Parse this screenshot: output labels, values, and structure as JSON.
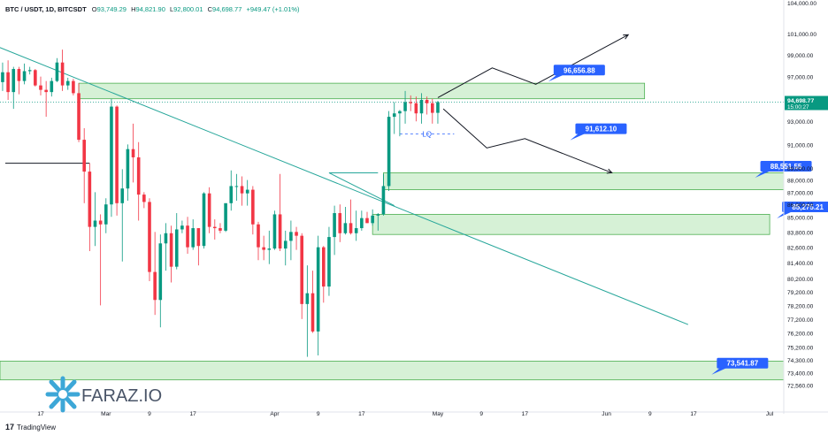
{
  "header": {
    "symbol": "BTC / USDT, 1D, BITCSDT",
    "o_label": "O",
    "o": "93,749.29",
    "h_label": "H",
    "h": "94,821.90",
    "l_label": "L",
    "l": "92,800.01",
    "c_label": "C",
    "c": "94,698.77",
    "change": "+949.47 (+1.01%)"
  },
  "watermark": {
    "text": "FARAZ.IO"
  },
  "footer": {
    "brand": "TradingView",
    "icon": "tradingview-logo-icon"
  },
  "colors": {
    "up": "#089981",
    "down": "#f23645",
    "zone": "#c8ecc8",
    "zone_border": "#4caf50",
    "trendline": "#26a69a",
    "label_bg": "#2962ff"
  },
  "chart_data": {
    "type": "candlestick",
    "title": "BTC / USDT, 1D, BITCSDT",
    "y_axis": {
      "scale": "log",
      "ylim": [
        71200,
        104000
      ],
      "ticks": [
        "104,000.00",
        "101,000.00",
        "99,000.00",
        "97,000.00",
        "95,000.00",
        "93,000.00",
        "91,000.00",
        "89,000.00",
        "88,000.00",
        "87,000.00",
        "86,000.00",
        "85,000.00",
        "83,800.00",
        "82,600.00",
        "81,400.00",
        "80,200.00",
        "79,200.00",
        "78,200.00",
        "77,200.00",
        "76,200.00",
        "75,200.00",
        "74,300.00",
        "73,400.00",
        "72,560.00"
      ]
    },
    "x_axis": {
      "labels": [
        "17",
        "Mar",
        "9",
        "17",
        "Apr",
        "9",
        "17",
        "May",
        "9",
        "17",
        "Jun",
        "9",
        "17",
        "Jul"
      ],
      "dates": [
        "2025-02-17",
        "2025-03-01",
        "2025-03-09",
        "2025-03-17",
        "2025-04-01",
        "2025-04-09",
        "2025-04-17",
        "2025-05-01",
        "2025-05-09",
        "2025-05-17",
        "2025-06-01",
        "2025-06-09",
        "2025-06-17",
        "2025-07-01"
      ]
    },
    "last_price": {
      "value": "94,698.77",
      "countdown": "15:00:27"
    },
    "candles": [
      {
        "d": "2025-02-08",
        "o": 96400,
        "h": 97800,
        "l": 94900,
        "c": 95800
      },
      {
        "d": "2025-02-09",
        "o": 95800,
        "h": 97300,
        "l": 94800,
        "c": 96500
      },
      {
        "d": "2025-02-10",
        "o": 96500,
        "h": 98300,
        "l": 95700,
        "c": 97400
      },
      {
        "d": "2025-02-11",
        "o": 97400,
        "h": 98500,
        "l": 94900,
        "c": 95600
      },
      {
        "d": "2025-02-12",
        "o": 95600,
        "h": 97900,
        "l": 94100,
        "c": 97700
      },
      {
        "d": "2025-02-13",
        "o": 97700,
        "h": 97900,
        "l": 95400,
        "c": 96600
      },
      {
        "d": "2025-02-14",
        "o": 96600,
        "h": 98200,
        "l": 96300,
        "c": 97500
      },
      {
        "d": "2025-02-15",
        "o": 97500,
        "h": 97900,
        "l": 97200,
        "c": 97600
      },
      {
        "d": "2025-02-16",
        "o": 97600,
        "h": 97700,
        "l": 96100,
        "c": 96200
      },
      {
        "d": "2025-02-17",
        "o": 96200,
        "h": 97000,
        "l": 95300,
        "c": 95800
      },
      {
        "d": "2025-02-18",
        "o": 95800,
        "h": 96600,
        "l": 93400,
        "c": 95600
      },
      {
        "d": "2025-02-19",
        "o": 95600,
        "h": 96900,
        "l": 95200,
        "c": 96600
      },
      {
        "d": "2025-02-20",
        "o": 96600,
        "h": 98700,
        "l": 96500,
        "c": 98300
      },
      {
        "d": "2025-02-21",
        "o": 98300,
        "h": 99500,
        "l": 95700,
        "c": 96200
      },
      {
        "d": "2025-02-22",
        "o": 96200,
        "h": 96900,
        "l": 95800,
        "c": 96600
      },
      {
        "d": "2025-02-23",
        "o": 96600,
        "h": 96800,
        "l": 95300,
        "c": 95500
      },
      {
        "d": "2025-02-24",
        "o": 95500,
        "h": 96400,
        "l": 91200,
        "c": 91400
      },
      {
        "d": "2025-02-25",
        "o": 91400,
        "h": 92400,
        "l": 86100,
        "c": 88700
      },
      {
        "d": "2025-02-26",
        "o": 88700,
        "h": 89400,
        "l": 82300,
        "c": 84200
      },
      {
        "d": "2025-02-27",
        "o": 84200,
        "h": 87000,
        "l": 82700,
        "c": 84700
      },
      {
        "d": "2025-02-28",
        "o": 84700,
        "h": 85200,
        "l": 78200,
        "c": 84400
      },
      {
        "d": "2025-03-01",
        "o": 84400,
        "h": 86500,
        "l": 83700,
        "c": 86000
      },
      {
        "d": "2025-03-02",
        "o": 86000,
        "h": 95000,
        "l": 85000,
        "c": 94300
      },
      {
        "d": "2025-03-03",
        "o": 94300,
        "h": 94400,
        "l": 85100,
        "c": 86100
      },
      {
        "d": "2025-03-04",
        "o": 86100,
        "h": 88900,
        "l": 81500,
        "c": 87300
      },
      {
        "d": "2025-03-05",
        "o": 87300,
        "h": 91000,
        "l": 86300,
        "c": 90600
      },
      {
        "d": "2025-03-06",
        "o": 90600,
        "h": 92800,
        "l": 87800,
        "c": 89900
      },
      {
        "d": "2025-03-07",
        "o": 89900,
        "h": 91200,
        "l": 84700,
        "c": 86800
      },
      {
        "d": "2025-03-08",
        "o": 86800,
        "h": 87000,
        "l": 85700,
        "c": 86200
      },
      {
        "d": "2025-03-09",
        "o": 86200,
        "h": 86500,
        "l": 80000,
        "c": 80700
      },
      {
        "d": "2025-03-10",
        "o": 80700,
        "h": 83800,
        "l": 77500,
        "c": 78600
      },
      {
        "d": "2025-03-11",
        "o": 78600,
        "h": 83600,
        "l": 76600,
        "c": 82900
      },
      {
        "d": "2025-03-12",
        "o": 82900,
        "h": 84500,
        "l": 80800,
        "c": 83700
      },
      {
        "d": "2025-03-13",
        "o": 83700,
        "h": 84300,
        "l": 79900,
        "c": 81100
      },
      {
        "d": "2025-03-14",
        "o": 81100,
        "h": 85300,
        "l": 80900,
        "c": 84000
      },
      {
        "d": "2025-03-15",
        "o": 84000,
        "h": 84700,
        "l": 83700,
        "c": 84300
      },
      {
        "d": "2025-03-16",
        "o": 84300,
        "h": 85000,
        "l": 82100,
        "c": 82600
      },
      {
        "d": "2025-03-17",
        "o": 82600,
        "h": 84800,
        "l": 82400,
        "c": 84100
      },
      {
        "d": "2025-03-18",
        "o": 84100,
        "h": 84100,
        "l": 81200,
        "c": 82700
      },
      {
        "d": "2025-03-19",
        "o": 82700,
        "h": 87000,
        "l": 82500,
        "c": 86900
      },
      {
        "d": "2025-03-20",
        "o": 86900,
        "h": 87400,
        "l": 83700,
        "c": 84200
      },
      {
        "d": "2025-03-21",
        "o": 84200,
        "h": 84800,
        "l": 83200,
        "c": 84100
      },
      {
        "d": "2025-03-22",
        "o": 84100,
        "h": 84500,
        "l": 83700,
        "c": 83900
      },
      {
        "d": "2025-03-23",
        "o": 83900,
        "h": 86100,
        "l": 83800,
        "c": 86100
      },
      {
        "d": "2025-03-24",
        "o": 86100,
        "h": 88800,
        "l": 85500,
        "c": 87500
      },
      {
        "d": "2025-03-25",
        "o": 87500,
        "h": 88500,
        "l": 86300,
        "c": 87500
      },
      {
        "d": "2025-03-26",
        "o": 87500,
        "h": 88300,
        "l": 85900,
        "c": 86900
      },
      {
        "d": "2025-03-27",
        "o": 86900,
        "h": 88000,
        "l": 85900,
        "c": 87200
      },
      {
        "d": "2025-03-28",
        "o": 87200,
        "h": 87500,
        "l": 83600,
        "c": 84400
      },
      {
        "d": "2025-03-29",
        "o": 84400,
        "h": 84600,
        "l": 81600,
        "c": 82600
      },
      {
        "d": "2025-03-30",
        "o": 82600,
        "h": 83500,
        "l": 81600,
        "c": 82400
      },
      {
        "d": "2025-03-31",
        "o": 82400,
        "h": 83900,
        "l": 81300,
        "c": 82500
      },
      {
        "d": "2025-04-01",
        "o": 82500,
        "h": 85500,
        "l": 82400,
        "c": 85200
      },
      {
        "d": "2025-04-02",
        "o": 85200,
        "h": 88500,
        "l": 82300,
        "c": 82500
      },
      {
        "d": "2025-04-03",
        "o": 82500,
        "h": 83900,
        "l": 81200,
        "c": 83100
      },
      {
        "d": "2025-04-04",
        "o": 83100,
        "h": 84700,
        "l": 81600,
        "c": 83800
      },
      {
        "d": "2025-04-05",
        "o": 83800,
        "h": 84200,
        "l": 82400,
        "c": 83500
      },
      {
        "d": "2025-04-06",
        "o": 83500,
        "h": 83700,
        "l": 77200,
        "c": 78300
      },
      {
        "d": "2025-04-07",
        "o": 78300,
        "h": 81200,
        "l": 74500,
        "c": 79100
      },
      {
        "d": "2025-04-08",
        "o": 79100,
        "h": 80800,
        "l": 76200,
        "c": 76300
      },
      {
        "d": "2025-04-09",
        "o": 76300,
        "h": 83500,
        "l": 74600,
        "c": 82600
      },
      {
        "d": "2025-04-10",
        "o": 82600,
        "h": 82700,
        "l": 78400,
        "c": 79600
      },
      {
        "d": "2025-04-11",
        "o": 79600,
        "h": 84200,
        "l": 78900,
        "c": 83400
      },
      {
        "d": "2025-04-12",
        "o": 83400,
        "h": 85900,
        "l": 82000,
        "c": 85300
      },
      {
        "d": "2025-04-13",
        "o": 85300,
        "h": 86000,
        "l": 83000,
        "c": 83700
      },
      {
        "d": "2025-04-14",
        "o": 83700,
        "h": 85800,
        "l": 83600,
        "c": 84500
      },
      {
        "d": "2025-04-15",
        "o": 84500,
        "h": 86400,
        "l": 83600,
        "c": 83700
      },
      {
        "d": "2025-04-16",
        "o": 83700,
        "h": 85500,
        "l": 83100,
        "c": 84100
      },
      {
        "d": "2025-04-17",
        "o": 84100,
        "h": 85500,
        "l": 83900,
        "c": 84900
      },
      {
        "d": "2025-04-18",
        "o": 84900,
        "h": 85400,
        "l": 84500,
        "c": 84500
      },
      {
        "d": "2025-04-19",
        "o": 84500,
        "h": 85600,
        "l": 84300,
        "c": 85100
      },
      {
        "d": "2025-04-20",
        "o": 85100,
        "h": 85300,
        "l": 83900,
        "c": 85200
      },
      {
        "d": "2025-04-21",
        "o": 85200,
        "h": 88500,
        "l": 85100,
        "c": 87500
      },
      {
        "d": "2025-04-22",
        "o": 87500,
        "h": 93900,
        "l": 87100,
        "c": 93400
      },
      {
        "d": "2025-04-23",
        "o": 93400,
        "h": 94700,
        "l": 91900,
        "c": 93700
      },
      {
        "d": "2025-04-24",
        "o": 93700,
        "h": 94000,
        "l": 91700,
        "c": 93900
      },
      {
        "d": "2025-04-25",
        "o": 93900,
        "h": 95700,
        "l": 92800,
        "c": 94700
      },
      {
        "d": "2025-04-26",
        "o": 94700,
        "h": 95300,
        "l": 93900,
        "c": 94600
      },
      {
        "d": "2025-04-27",
        "o": 94600,
        "h": 95200,
        "l": 93000,
        "c": 93700
      },
      {
        "d": "2025-04-28",
        "o": 93700,
        "h": 95500,
        "l": 92800,
        "c": 94900
      },
      {
        "d": "2025-04-29",
        "o": 94900,
        "h": 95200,
        "l": 93600,
        "c": 94600
      },
      {
        "d": "2025-04-30",
        "o": 94600,
        "h": 95000,
        "l": 92800,
        "c": 93750
      },
      {
        "d": "2025-05-01",
        "o": 93749.29,
        "h": 94821.9,
        "l": 92800.01,
        "c": 94698.77
      }
    ],
    "zones": [
      {
        "from": "2025-02-24",
        "to": "2025-06-08",
        "low": 95000,
        "high": 96400
      },
      {
        "from": "2025-04-21",
        "to": "2025-07-05",
        "low": 87200,
        "high": 88600
      },
      {
        "from": "2025-04-19",
        "to": "2025-07-01",
        "low": 83600,
        "high": 85200
      },
      {
        "from": "2025-01-20",
        "to": "2025-09-05",
        "low": 72900,
        "high": 74200
      }
    ],
    "trendline": [
      {
        "d": "2025-01-20",
        "p": 104000
      },
      {
        "d": "2025-06-16",
        "p": 76800
      }
    ],
    "trendline2": [
      {
        "d": "2025-04-20",
        "p": 88600
      },
      {
        "d": "2025-04-21",
        "p": 88600
      }
    ],
    "support_line": {
      "from": "2025-01-20",
      "to": "2025-02-26",
      "p": 89400
    },
    "lq_line": {
      "from": "2025-04-24",
      "to": "2025-05-04",
      "p": 91900,
      "label": "LQ"
    },
    "price_labels": [
      {
        "text": "96,656.88",
        "d": "2025-05-27",
        "p": 97600
      },
      {
        "text": "91,612.10",
        "d": "2025-05-31",
        "p": 92350
      },
      {
        "text": "88,551.55",
        "d": "2025-07-04",
        "p": 89150
      },
      {
        "text": "85,275.21",
        "d": "2025-07-08",
        "p": 85800
      },
      {
        "text": "73,541.87",
        "d": "2025-06-26",
        "p": 74060
      }
    ],
    "paths": [
      [
        {
          "d": "2025-05-01",
          "p": 95100
        },
        {
          "d": "2025-05-11",
          "p": 97800
        },
        {
          "d": "2025-05-19",
          "p": 96300
        },
        {
          "d": "2025-06-05",
          "p": 100900
        }
      ],
      [
        {
          "d": "2025-05-02",
          "p": 94100
        },
        {
          "d": "2025-05-10",
          "p": 90700
        },
        {
          "d": "2025-05-17",
          "p": 91500
        },
        {
          "d": "2025-06-02",
          "p": 88600
        }
      ]
    ]
  }
}
